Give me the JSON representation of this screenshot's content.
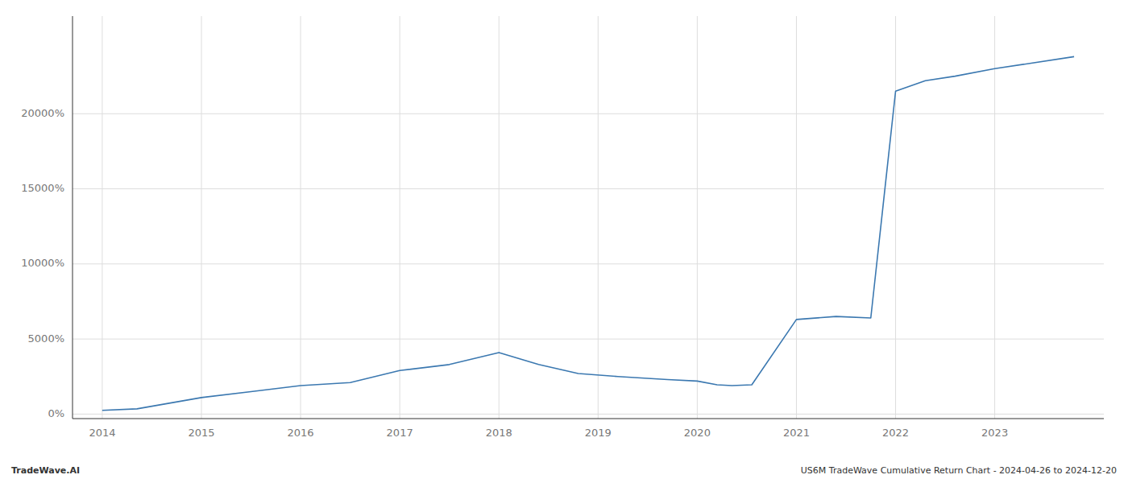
{
  "chart_data": {
    "type": "line",
    "x": [
      2014.0,
      2014.35,
      2015.0,
      2015.5,
      2016.0,
      2016.5,
      2017.0,
      2017.5,
      2018.0,
      2018.4,
      2018.8,
      2019.2,
      2019.7,
      2020.0,
      2020.2,
      2020.35,
      2020.55,
      2021.0,
      2021.4,
      2021.75,
      2022.0,
      2022.3,
      2022.6,
      2023.0,
      2023.8
    ],
    "values": [
      250,
      350,
      1100,
      1500,
      1900,
      2100,
      2900,
      3300,
      4100,
      3300,
      2700,
      2500,
      2300,
      2200,
      1950,
      1900,
      1950,
      6300,
      6500,
      6400,
      21500,
      22200,
      22500,
      23000,
      23800
    ],
    "color": "#3b78b0",
    "xlim": [
      2013.7,
      2024.1
    ],
    "xticks": [
      2014,
      2015,
      2016,
      2017,
      2018,
      2019,
      2020,
      2021,
      2022,
      2023
    ],
    "ylim": [
      -300,
      26500
    ],
    "yticks": [
      {
        "value": 0,
        "label": "0%"
      },
      {
        "value": 5000,
        "label": "5000%"
      },
      {
        "value": 10000,
        "label": "10000%"
      },
      {
        "value": 15000,
        "label": "15000%"
      },
      {
        "value": 20000,
        "label": "20000%"
      }
    ],
    "grid": true,
    "annotations": [
      "TradeWave.AI",
      "US6M TradeWave Cumulative Return Chart - 2024-04-26 to 2024-12-20"
    ]
  }
}
